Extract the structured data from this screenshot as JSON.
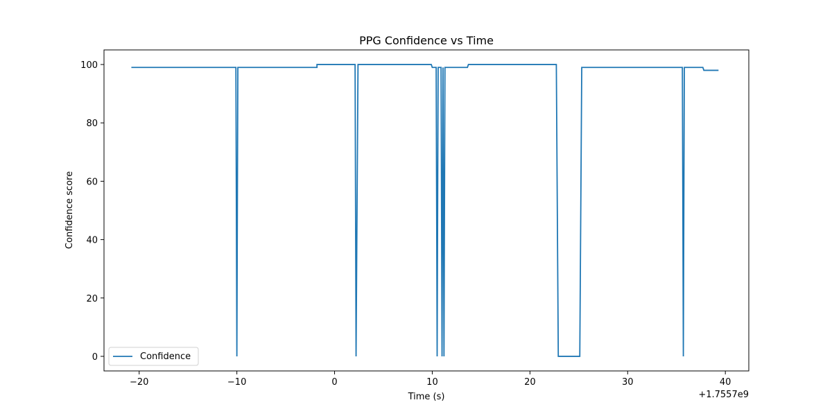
{
  "chart_data": {
    "type": "line",
    "title": "PPG Confidence vs Time",
    "xlabel": "Time (s)",
    "ylabel": "Confidence score",
    "x_offset_label": "+1.7557e9",
    "xlim": [
      -23.6,
      42.4
    ],
    "ylim": [
      -5,
      105
    ],
    "x_ticks": [
      -20,
      -10,
      0,
      10,
      20,
      30,
      40
    ],
    "y_ticks": [
      0,
      20,
      40,
      60,
      80,
      100
    ],
    "grid": false,
    "legend_position": "lower-left",
    "series": [
      {
        "name": "Confidence",
        "color": "#1f77b4",
        "x": [
          -20.8,
          -10.1,
          -10.0,
          -9.9,
          -1.8,
          -1.8,
          2.1,
          2.2,
          2.4,
          9.9,
          10.0,
          10.4,
          10.5,
          10.6,
          10.9,
          11.0,
          11.1,
          11.2,
          11.3,
          13.6,
          13.7,
          22.7,
          22.9,
          25.1,
          25.3,
          35.6,
          35.7,
          35.8,
          37.7,
          37.8,
          39.3
        ],
        "y": [
          99,
          99,
          0,
          99,
          99,
          100,
          100,
          0,
          100,
          100,
          99,
          99,
          0,
          99,
          99,
          0,
          99,
          0,
          99,
          99,
          100,
          100,
          0,
          0,
          99,
          99,
          0,
          99,
          99,
          98,
          98
        ]
      }
    ]
  }
}
